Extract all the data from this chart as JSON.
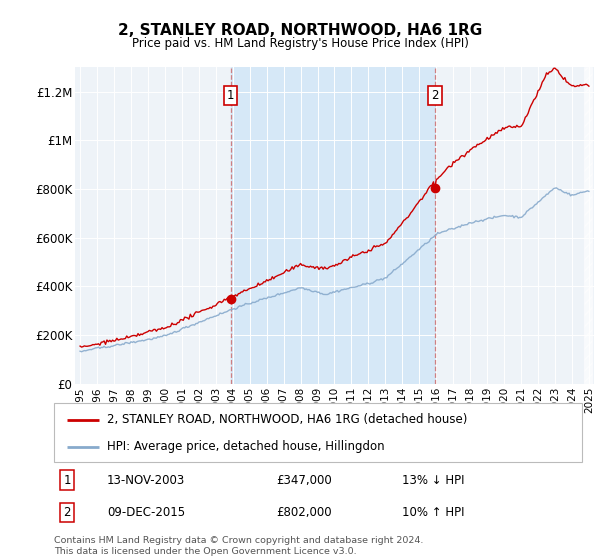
{
  "title": "2, STANLEY ROAD, NORTHWOOD, HA6 1RG",
  "subtitle": "Price paid vs. HM Land Registry's House Price Index (HPI)",
  "ylabel_ticks": [
    "£0",
    "£200K",
    "£400K",
    "£600K",
    "£800K",
    "£1M",
    "£1.2M"
  ],
  "ylim": [
    0,
    1300000
  ],
  "yticks": [
    0,
    200000,
    400000,
    600000,
    800000,
    1000000,
    1200000
  ],
  "sale1_date": 2003.87,
  "sale1_price": 347000,
  "sale1_text": "13-NOV-2003",
  "sale1_amount": "£347,000",
  "sale1_hpi": "13% ↓ HPI",
  "sale2_date": 2015.93,
  "sale2_price": 802000,
  "sale2_text": "09-DEC-2015",
  "sale2_amount": "£802,000",
  "sale2_hpi": "10% ↑ HPI",
  "line1_color": "#cc0000",
  "line2_color": "#88aacc",
  "bg_shaded": "#ddeeff",
  "footer": "Contains HM Land Registry data © Crown copyright and database right 2024.\nThis data is licensed under the Open Government Licence v3.0.",
  "legend1": "2, STANLEY ROAD, NORTHWOOD, HA6 1RG (detached house)",
  "legend2": "HPI: Average price, detached house, Hillingdon"
}
